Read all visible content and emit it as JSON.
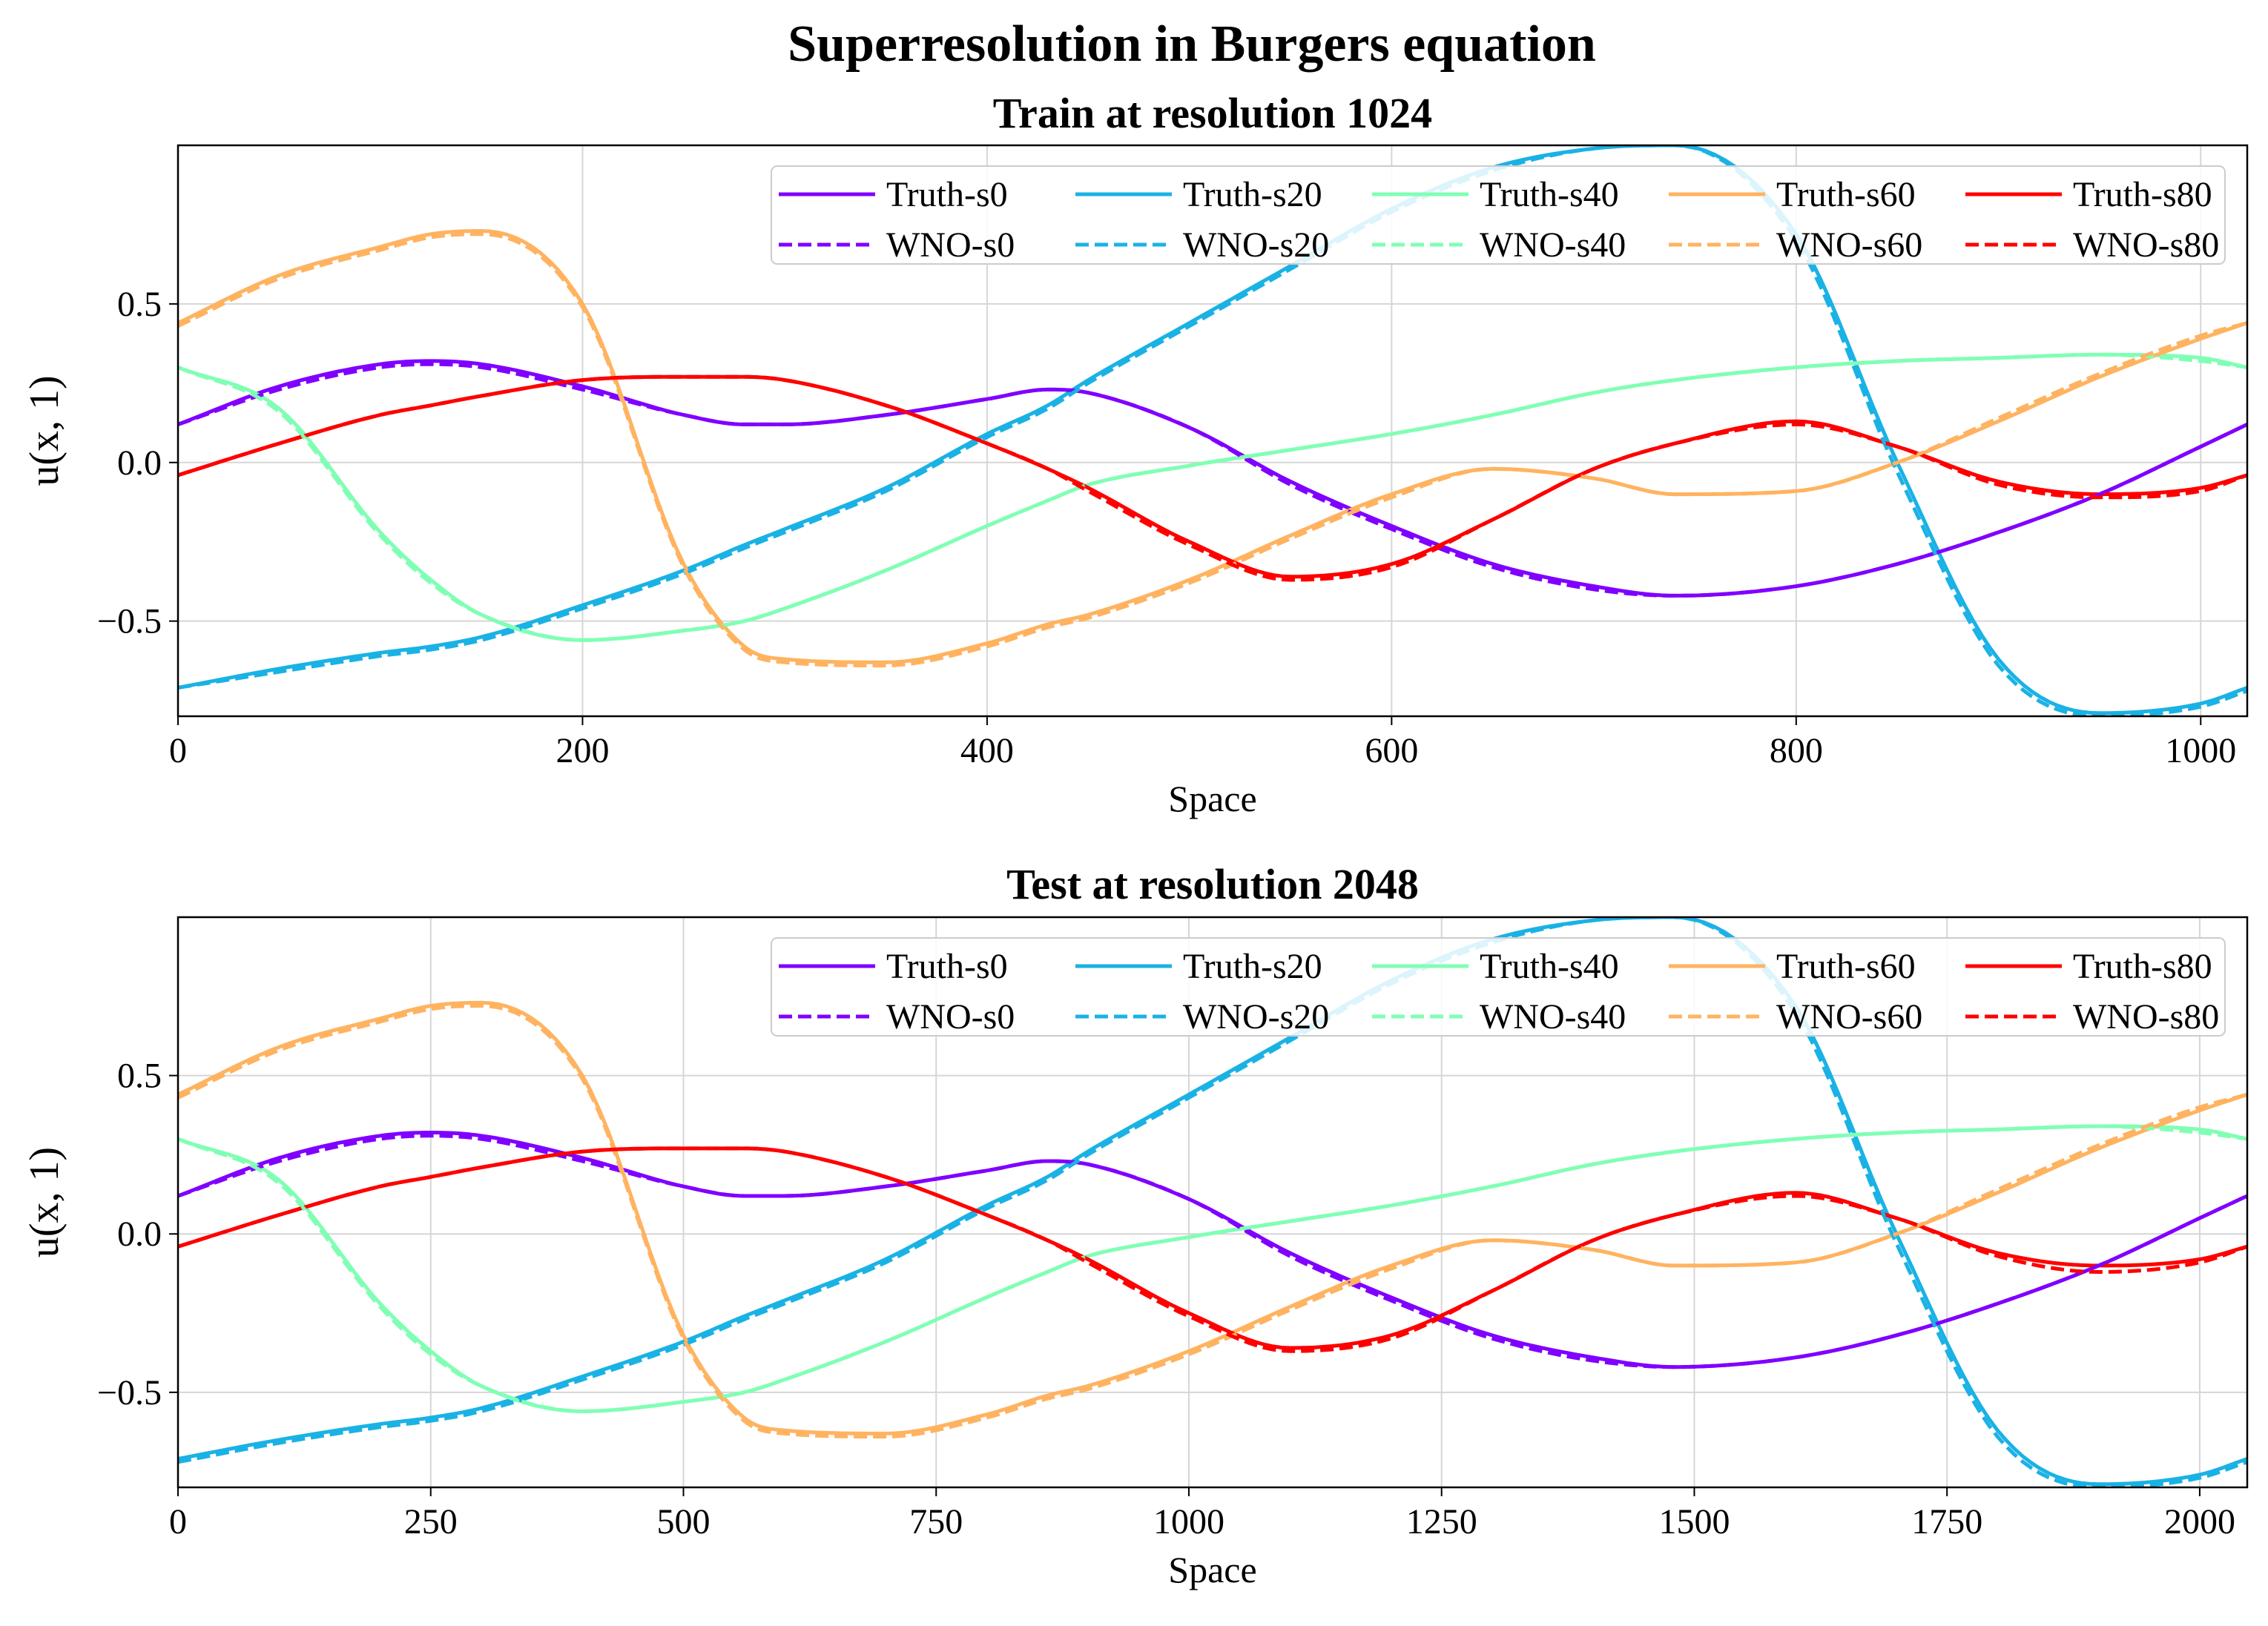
{
  "figure": {
    "suptitle": "Superresolution in Burgers equation"
  },
  "chart_data": [
    {
      "type": "line",
      "title": "Train at resolution 1024",
      "xlabel": "Space",
      "ylabel": "u(x, 1)",
      "xlim": [
        0,
        1023
      ],
      "ylim": [
        -0.8,
        1.0
      ],
      "xticks": [
        0,
        200,
        400,
        600,
        800,
        1000
      ],
      "xtick_labels": [
        "0",
        "200",
        "400",
        "600",
        "800",
        "1000"
      ],
      "yticks": [
        -0.5,
        0.0,
        0.5
      ],
      "ytick_labels": [
        "−0.5",
        "0.0",
        "0.5"
      ],
      "grid": true,
      "legend": {
        "placement": "top-right",
        "columns": 5
      },
      "x": [
        0,
        50,
        100,
        125,
        150,
        200,
        250,
        280,
        300,
        350,
        400,
        430,
        450,
        500,
        550,
        600,
        650,
        700,
        740,
        800,
        850,
        900,
        950,
        1000,
        1023
      ],
      "series": [
        {
          "name": "Truth-s0",
          "color": "#8000ff",
          "dash": false,
          "values": [
            0.12,
            0.24,
            0.31,
            0.32,
            0.31,
            0.24,
            0.15,
            0.12,
            0.12,
            0.15,
            0.2,
            0.23,
            0.22,
            0.11,
            -0.06,
            -0.2,
            -0.32,
            -0.39,
            -0.42,
            -0.39,
            -0.32,
            -0.22,
            -0.1,
            0.05,
            0.12
          ]
        },
        {
          "name": "Truth-s20",
          "color": "#1ab2e5",
          "dash": false,
          "values": [
            -0.71,
            -0.65,
            -0.6,
            -0.58,
            -0.55,
            -0.45,
            -0.34,
            -0.26,
            -0.21,
            -0.08,
            0.09,
            0.18,
            0.26,
            0.44,
            0.62,
            0.8,
            0.93,
            0.99,
            1.0,
            0.72,
            0.0,
            -0.62,
            -0.79,
            -0.76,
            -0.71
          ]
        },
        {
          "name": "Truth-s40",
          "color": "#80ffb4",
          "dash": false,
          "values": [
            0.3,
            0.17,
            -0.22,
            -0.37,
            -0.48,
            -0.56,
            -0.53,
            -0.5,
            -0.46,
            -0.34,
            -0.2,
            -0.12,
            -0.07,
            -0.01,
            0.04,
            0.09,
            0.15,
            0.22,
            0.26,
            0.3,
            0.32,
            0.33,
            0.34,
            0.33,
            0.3
          ]
        },
        {
          "name": "Truth-s60",
          "color": "#ffb360",
          "dash": false,
          "values": [
            0.44,
            0.59,
            0.68,
            0.72,
            0.73,
            0.5,
            -0.32,
            -0.58,
            -0.62,
            -0.63,
            -0.57,
            -0.51,
            -0.48,
            -0.37,
            -0.23,
            -0.1,
            -0.02,
            -0.05,
            -0.1,
            -0.09,
            0.0,
            0.13,
            0.27,
            0.39,
            0.44
          ]
        },
        {
          "name": "Truth-s80",
          "color": "#ff0000",
          "dash": false,
          "values": [
            -0.04,
            0.06,
            0.15,
            0.18,
            0.21,
            0.26,
            0.27,
            0.27,
            0.26,
            0.18,
            0.06,
            -0.02,
            -0.08,
            -0.25,
            -0.36,
            -0.32,
            -0.18,
            -0.02,
            0.06,
            0.13,
            0.05,
            -0.06,
            -0.1,
            -0.08,
            -0.04
          ]
        },
        {
          "name": "WNO-s0",
          "color": "#8000ff",
          "dash": true,
          "values": [
            0.12,
            0.23,
            0.3,
            0.31,
            0.3,
            0.23,
            0.15,
            0.12,
            0.12,
            0.15,
            0.2,
            0.23,
            0.22,
            0.11,
            -0.07,
            -0.21,
            -0.33,
            -0.4,
            -0.42,
            -0.39,
            -0.32,
            -0.22,
            -0.1,
            0.05,
            0.12
          ]
        },
        {
          "name": "WNO-s20",
          "color": "#1ab2e5",
          "dash": true,
          "values": [
            -0.71,
            -0.66,
            -0.61,
            -0.59,
            -0.56,
            -0.46,
            -0.35,
            -0.27,
            -0.22,
            -0.09,
            0.08,
            0.17,
            0.25,
            0.43,
            0.61,
            0.79,
            0.92,
            0.99,
            1.0,
            0.7,
            -0.03,
            -0.64,
            -0.8,
            -0.77,
            -0.72
          ]
        },
        {
          "name": "WNO-s40",
          "color": "#80ffb4",
          "dash": true,
          "values": [
            0.3,
            0.16,
            -0.23,
            -0.38,
            -0.48,
            -0.56,
            -0.53,
            -0.5,
            -0.46,
            -0.34,
            -0.2,
            -0.12,
            -0.07,
            -0.01,
            0.04,
            0.09,
            0.15,
            0.22,
            0.26,
            0.3,
            0.32,
            0.33,
            0.34,
            0.32,
            0.3
          ]
        },
        {
          "name": "WNO-s60",
          "color": "#ffb360",
          "dash": true,
          "values": [
            0.43,
            0.58,
            0.67,
            0.71,
            0.72,
            0.49,
            -0.33,
            -0.59,
            -0.63,
            -0.64,
            -0.58,
            -0.52,
            -0.49,
            -0.38,
            -0.24,
            -0.11,
            -0.02,
            -0.05,
            -0.1,
            -0.09,
            0.0,
            0.14,
            0.28,
            0.4,
            0.44
          ]
        },
        {
          "name": "WNO-s80",
          "color": "#ff0000",
          "dash": true,
          "values": [
            -0.04,
            0.06,
            0.15,
            0.18,
            0.21,
            0.26,
            0.27,
            0.27,
            0.26,
            0.18,
            0.06,
            -0.02,
            -0.09,
            -0.26,
            -0.37,
            -0.33,
            -0.18,
            -0.02,
            0.06,
            0.12,
            0.05,
            -0.07,
            -0.11,
            -0.09,
            -0.04
          ]
        }
      ]
    },
    {
      "type": "line",
      "title": "Test at resolution 2048",
      "xlabel": "Space",
      "ylabel": "u(x, 1)",
      "xlim": [
        0,
        2047
      ],
      "ylim": [
        -0.8,
        1.0
      ],
      "xticks": [
        0,
        250,
        500,
        750,
        1000,
        1250,
        1500,
        1750,
        2000
      ],
      "xtick_labels": [
        "0",
        "250",
        "500",
        "750",
        "1000",
        "1250",
        "1500",
        "1750",
        "2000"
      ],
      "yticks": [
        -0.5,
        0.0,
        0.5
      ],
      "ytick_labels": [
        "−0.5",
        "0.0",
        "0.5"
      ],
      "grid": true,
      "legend": {
        "placement": "top-right",
        "columns": 5
      },
      "x": [
        0,
        100,
        200,
        250,
        300,
        400,
        500,
        560,
        600,
        700,
        800,
        860,
        900,
        1000,
        1100,
        1200,
        1300,
        1400,
        1480,
        1600,
        1700,
        1800,
        1900,
        2000,
        2047
      ],
      "series": [
        {
          "name": "Truth-s0",
          "color": "#8000ff",
          "dash": false,
          "values": [
            0.12,
            0.24,
            0.31,
            0.32,
            0.31,
            0.24,
            0.15,
            0.12,
            0.12,
            0.15,
            0.2,
            0.23,
            0.22,
            0.11,
            -0.06,
            -0.2,
            -0.32,
            -0.39,
            -0.42,
            -0.39,
            -0.32,
            -0.22,
            -0.1,
            0.05,
            0.12
          ]
        },
        {
          "name": "Truth-s20",
          "color": "#1ab2e5",
          "dash": false,
          "values": [
            -0.71,
            -0.65,
            -0.6,
            -0.58,
            -0.55,
            -0.45,
            -0.34,
            -0.26,
            -0.21,
            -0.08,
            0.09,
            0.18,
            0.26,
            0.44,
            0.62,
            0.8,
            0.93,
            0.99,
            1.0,
            0.72,
            0.0,
            -0.62,
            -0.79,
            -0.76,
            -0.71
          ]
        },
        {
          "name": "Truth-s40",
          "color": "#80ffb4",
          "dash": false,
          "values": [
            0.3,
            0.17,
            -0.22,
            -0.37,
            -0.48,
            -0.56,
            -0.53,
            -0.5,
            -0.46,
            -0.34,
            -0.2,
            -0.12,
            -0.07,
            -0.01,
            0.04,
            0.09,
            0.15,
            0.22,
            0.26,
            0.3,
            0.32,
            0.33,
            0.34,
            0.33,
            0.3
          ]
        },
        {
          "name": "Truth-s60",
          "color": "#ffb360",
          "dash": false,
          "values": [
            0.44,
            0.59,
            0.68,
            0.72,
            0.73,
            0.5,
            -0.32,
            -0.58,
            -0.62,
            -0.63,
            -0.57,
            -0.51,
            -0.48,
            -0.37,
            -0.23,
            -0.1,
            -0.02,
            -0.05,
            -0.1,
            -0.09,
            0.0,
            0.13,
            0.27,
            0.39,
            0.44
          ]
        },
        {
          "name": "Truth-s80",
          "color": "#ff0000",
          "dash": false,
          "values": [
            -0.04,
            0.06,
            0.15,
            0.18,
            0.21,
            0.26,
            0.27,
            0.27,
            0.26,
            0.18,
            0.06,
            -0.02,
            -0.08,
            -0.25,
            -0.36,
            -0.32,
            -0.18,
            -0.02,
            0.06,
            0.13,
            0.05,
            -0.06,
            -0.1,
            -0.08,
            -0.04
          ]
        },
        {
          "name": "WNO-s0",
          "color": "#8000ff",
          "dash": true,
          "values": [
            0.12,
            0.23,
            0.3,
            0.31,
            0.3,
            0.23,
            0.15,
            0.12,
            0.12,
            0.15,
            0.2,
            0.23,
            0.22,
            0.11,
            -0.07,
            -0.21,
            -0.33,
            -0.4,
            -0.42,
            -0.39,
            -0.32,
            -0.22,
            -0.1,
            0.05,
            0.12
          ]
        },
        {
          "name": "WNO-s20",
          "color": "#1ab2e5",
          "dash": true,
          "values": [
            -0.72,
            -0.66,
            -0.61,
            -0.59,
            -0.56,
            -0.46,
            -0.35,
            -0.27,
            -0.22,
            -0.09,
            0.08,
            0.17,
            0.25,
            0.43,
            0.61,
            0.79,
            0.92,
            0.99,
            1.0,
            0.7,
            -0.03,
            -0.64,
            -0.8,
            -0.77,
            -0.72
          ]
        },
        {
          "name": "WNO-s40",
          "color": "#80ffb4",
          "dash": true,
          "values": [
            0.3,
            0.16,
            -0.23,
            -0.38,
            -0.48,
            -0.56,
            -0.53,
            -0.5,
            -0.46,
            -0.34,
            -0.2,
            -0.12,
            -0.07,
            -0.01,
            0.04,
            0.09,
            0.15,
            0.22,
            0.26,
            0.3,
            0.32,
            0.33,
            0.34,
            0.32,
            0.3
          ]
        },
        {
          "name": "WNO-s60",
          "color": "#ffb360",
          "dash": true,
          "values": [
            0.43,
            0.58,
            0.67,
            0.71,
            0.72,
            0.49,
            -0.33,
            -0.59,
            -0.63,
            -0.64,
            -0.58,
            -0.52,
            -0.49,
            -0.38,
            -0.24,
            -0.11,
            -0.02,
            -0.05,
            -0.1,
            -0.09,
            0.0,
            0.14,
            0.28,
            0.4,
            0.44
          ]
        },
        {
          "name": "WNO-s80",
          "color": "#ff0000",
          "dash": true,
          "values": [
            -0.04,
            0.06,
            0.15,
            0.18,
            0.21,
            0.26,
            0.27,
            0.27,
            0.26,
            0.18,
            0.06,
            -0.02,
            -0.09,
            -0.26,
            -0.37,
            -0.33,
            -0.18,
            -0.02,
            0.06,
            0.12,
            0.05,
            -0.07,
            -0.12,
            -0.09,
            -0.04
          ]
        }
      ]
    }
  ]
}
